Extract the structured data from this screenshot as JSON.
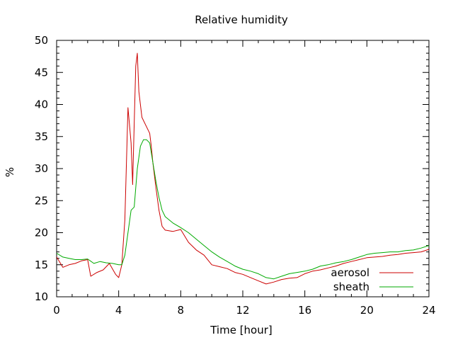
{
  "chart_data": {
    "type": "line",
    "title": "Relative humidity",
    "xlabel": "Time [hour]",
    "ylabel": "%",
    "xlim": [
      0,
      24
    ],
    "ylim": [
      10,
      50
    ],
    "xticks": [
      0,
      4,
      8,
      12,
      16,
      20,
      24
    ],
    "yticks": [
      10,
      15,
      20,
      25,
      30,
      35,
      40,
      45,
      50
    ],
    "grid": false,
    "legend": "bottom-right",
    "series": [
      {
        "name": "aerosol",
        "color": "#cc0000",
        "x": [
          0,
          0.4,
          0.8,
          1.2,
          1.6,
          2.0,
          2.2,
          2.6,
          3.0,
          3.4,
          3.8,
          4.0,
          4.2,
          4.4,
          4.6,
          4.8,
          4.9,
          5.0,
          5.1,
          5.2,
          5.3,
          5.5,
          5.8,
          6.0,
          6.1,
          6.2,
          6.4,
          6.6,
          6.8,
          7.0,
          7.5,
          8.0,
          8.5,
          9.0,
          9.5,
          10.0,
          10.5,
          11.0,
          11.5,
          12.0,
          12.5,
          13.0,
          13.5,
          14.0,
          14.5,
          15.0,
          15.5,
          16.0,
          16.5,
          17.0,
          17.5,
          18.0,
          18.5,
          19.0,
          19.5,
          20.0,
          20.5,
          21.0,
          21.5,
          22.0,
          22.5,
          23.0,
          23.5,
          24.0
        ],
        "y": [
          16.2,
          14.6,
          15.0,
          15.2,
          15.6,
          15.8,
          13.2,
          13.8,
          14.2,
          15.2,
          13.5,
          13.0,
          15.0,
          22.0,
          39.5,
          34.0,
          27.5,
          37.0,
          46.0,
          48.0,
          42.0,
          38.0,
          36.5,
          35.5,
          33.5,
          31.0,
          27.0,
          23.5,
          21.0,
          20.4,
          20.2,
          20.5,
          18.5,
          17.3,
          16.5,
          15.0,
          14.7,
          14.4,
          13.8,
          13.5,
          13.0,
          12.5,
          12.0,
          12.3,
          12.7,
          12.9,
          13.0,
          13.6,
          14.0,
          14.2,
          14.5,
          14.8,
          15.2,
          15.5,
          15.8,
          16.1,
          16.2,
          16.3,
          16.5,
          16.6,
          16.8,
          16.9,
          17.0,
          17.4
        ]
      },
      {
        "name": "sheath",
        "color": "#00aa00",
        "x": [
          0,
          0.4,
          0.8,
          1.2,
          1.6,
          2.0,
          2.4,
          2.8,
          3.2,
          3.6,
          4.0,
          4.2,
          4.4,
          4.6,
          4.8,
          5.0,
          5.2,
          5.4,
          5.6,
          5.8,
          6.0,
          6.2,
          6.4,
          6.6,
          6.8,
          7.0,
          7.5,
          8.0,
          8.5,
          9.0,
          9.5,
          10.0,
          10.5,
          11.0,
          11.5,
          12.0,
          12.5,
          13.0,
          13.5,
          14.0,
          14.5,
          15.0,
          15.5,
          16.0,
          16.5,
          17.0,
          17.5,
          18.0,
          18.5,
          19.0,
          19.5,
          20.0,
          20.5,
          21.0,
          21.5,
          22.0,
          22.5,
          23.0,
          23.5,
          24.0
        ],
        "y": [
          16.8,
          16.2,
          16.0,
          15.8,
          15.8,
          15.9,
          15.2,
          15.5,
          15.3,
          15.2,
          15.0,
          15.0,
          16.5,
          20.0,
          23.5,
          24.0,
          30.0,
          33.5,
          34.5,
          34.5,
          34.0,
          31.0,
          28.0,
          25.5,
          23.5,
          22.5,
          21.5,
          20.8,
          20.0,
          19.0,
          18.0,
          17.0,
          16.2,
          15.5,
          14.8,
          14.3,
          14.0,
          13.6,
          13.0,
          12.8,
          13.2,
          13.6,
          13.8,
          14.0,
          14.3,
          14.8,
          15.0,
          15.3,
          15.5,
          15.8,
          16.2,
          16.6,
          16.8,
          16.9,
          17.0,
          17.0,
          17.2,
          17.3,
          17.6,
          18.0
        ]
      }
    ]
  }
}
